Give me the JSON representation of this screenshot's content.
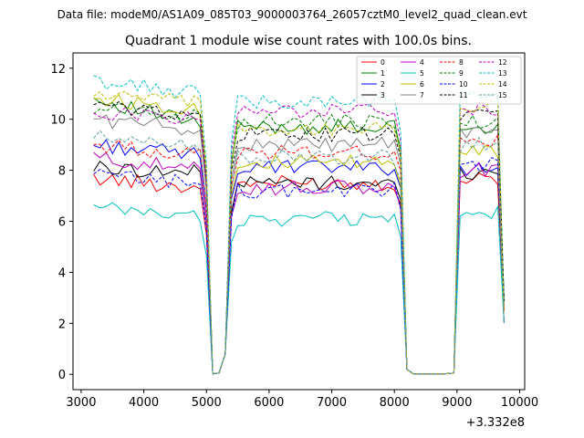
{
  "chart_data": {
    "type": "line",
    "suptitle": "Data file: modeM0/AS1A09_085T03_9000003764_26057cztM0_level2_quad_clean.evt",
    "title": "Quadrant 1 module wise count rates with 100.0s bins.",
    "xlabel": "",
    "ylabel": "",
    "x_offset_label": "+3.332e8",
    "xlim": [
      2870,
      10080
    ],
    "ylim": [
      -0.6,
      12.6
    ],
    "x_ticks": [
      3000,
      4000,
      5000,
      6000,
      7000,
      8000,
      9000,
      10000
    ],
    "x_tick_labels": [
      "3000",
      "4000",
      "5000",
      "6000",
      "7000",
      "8000",
      "9000",
      "10000"
    ],
    "y_ticks": [
      0,
      2,
      4,
      6,
      8,
      10,
      12
    ],
    "y_tick_labels": [
      "0",
      "2",
      "4",
      "6",
      "8",
      "10",
      "12"
    ],
    "x_segments": [
      {
        "start": 3200,
        "step": 100,
        "count": 20
      },
      {
        "start": 5200,
        "step": 100,
        "count": 30
      },
      {
        "start": 8200,
        "step": 100,
        "count": 7
      },
      {
        "start": 8950,
        "step": 100,
        "count": 9
      }
    ],
    "legend_position": "upper right",
    "series": [
      {
        "name": "0",
        "color": "#ff0000",
        "dash": "solid",
        "levels": [
          7.7,
          7.3,
          0.02,
          7.5,
          0.2,
          7.7
        ]
      },
      {
        "name": "1",
        "color": "#008000",
        "dash": "solid",
        "levels": [
          10.8,
          9.8,
          0.02,
          9.7,
          0.2,
          9.6
        ]
      },
      {
        "name": "2",
        "color": "#0000ff",
        "dash": "solid",
        "levels": [
          9.0,
          8.6,
          0.02,
          8.1,
          0.2,
          8.1
        ]
      },
      {
        "name": "3",
        "color": "#000000",
        "dash": "solid",
        "levels": [
          8.1,
          7.9,
          0.02,
          7.5,
          0.2,
          7.9
        ]
      },
      {
        "name": "4",
        "color": "#bf00bf",
        "dash": "solid",
        "levels": [
          8.5,
          8.0,
          0.02,
          7.3,
          0.2,
          8.0
        ]
      },
      {
        "name": "5",
        "color": "#00bfbf",
        "dash": "solid",
        "levels": [
          6.5,
          6.2,
          0.02,
          6.1,
          0.2,
          6.3
        ]
      },
      {
        "name": "6",
        "color": "#bfbf00",
        "dash": "solid",
        "levels": [
          10.8,
          10.4,
          0.02,
          8.3,
          0.2,
          8.8
        ]
      },
      {
        "name": "7",
        "color": "#808080",
        "dash": "solid",
        "levels": [
          10.0,
          9.6,
          0.02,
          9.0,
          0.2,
          9.5
        ]
      },
      {
        "name": "8",
        "color": "#ff0000",
        "dash": "dashed",
        "levels": [
          9.0,
          8.6,
          0.02,
          8.7,
          0.2,
          9.1
        ]
      },
      {
        "name": "9",
        "color": "#008000",
        "dash": "dashed",
        "levels": [
          10.5,
          10.1,
          0.02,
          9.9,
          0.2,
          9.9
        ]
      },
      {
        "name": "10",
        "color": "#0000ff",
        "dash": "dashed",
        "levels": [
          7.8,
          7.5,
          0.02,
          7.2,
          0.2,
          8.2
        ]
      },
      {
        "name": "11",
        "color": "#000000",
        "dash": "dashed",
        "levels": [
          10.5,
          10.2,
          0.02,
          9.4,
          0.2,
          10.2
        ]
      },
      {
        "name": "12",
        "color": "#bf00bf",
        "dash": "dashed",
        "levels": [
          10.3,
          10.0,
          0.02,
          10.3,
          0.2,
          10.4
        ]
      },
      {
        "name": "13",
        "color": "#00bfbf",
        "dash": "dashed",
        "levels": [
          11.5,
          11.0,
          0.02,
          10.7,
          0.2,
          10.9
        ]
      },
      {
        "name": "14",
        "color": "#bfbf00",
        "dash": "dashed",
        "levels": [
          11.0,
          10.6,
          0.02,
          9.6,
          0.2,
          10.5
        ]
      },
      {
        "name": "15",
        "color": "#5f9ea0",
        "dash": "dashed",
        "levels": [
          9.3,
          9.0,
          0.02,
          8.5,
          0.2,
          9.0
        ]
      }
    ]
  }
}
